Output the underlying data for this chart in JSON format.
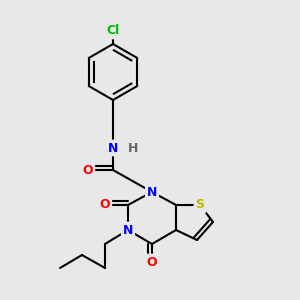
{
  "background_color": "#e8e8e8",
  "bond_color": "#000000",
  "bond_width": 1.5,
  "atoms": {
    "Cl": {
      "color": "#00bb00",
      "fontsize": 9
    },
    "N": {
      "color": "#0000ff",
      "fontsize": 9
    },
    "O": {
      "color": "#ff0000",
      "fontsize": 9
    },
    "S": {
      "color": "#bbbb00",
      "fontsize": 9
    },
    "H": {
      "color": "#666666",
      "fontsize": 9
    }
  }
}
